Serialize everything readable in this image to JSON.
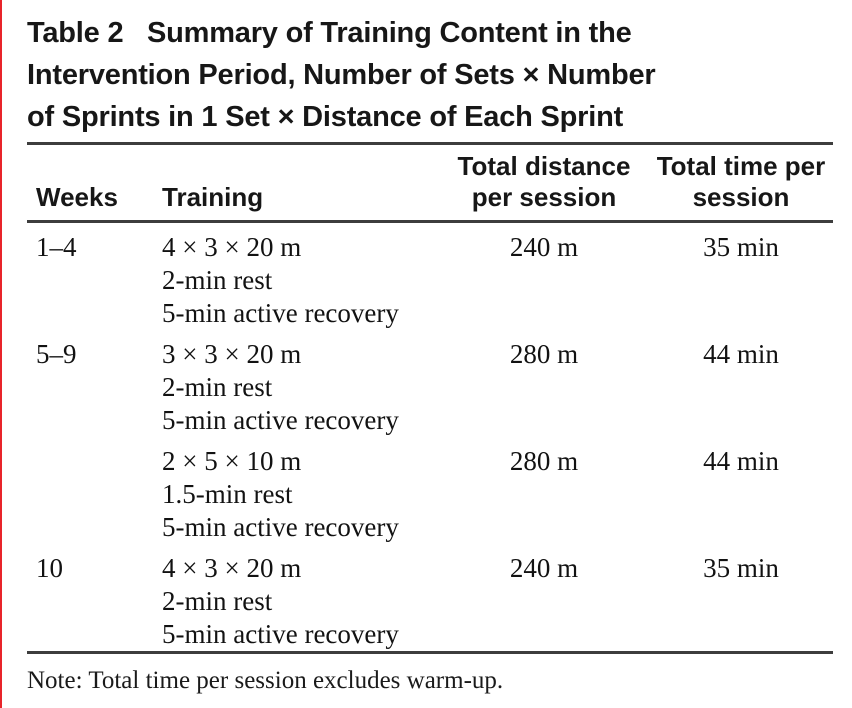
{
  "colors": {
    "background": "#ffffff",
    "text": "#141414",
    "rule": "#3d3d3d",
    "left_edge": "#e8242a"
  },
  "title": {
    "lines": [
      "Table 2   Summary of Training Content in the",
      "Intervention Period, Number of Sets × Number",
      "of Sprints in 1 Set × Distance of Each Sprint"
    ]
  },
  "table": {
    "columns": [
      {
        "key": "weeks",
        "label": "Weeks"
      },
      {
        "key": "training",
        "label": "Training"
      },
      {
        "key": "distance",
        "label": "Total distance per session"
      },
      {
        "key": "time",
        "label": "Total time per session"
      }
    ],
    "rows": [
      {
        "weeks": "1–4",
        "training": [
          "4 × 3 × 20 m",
          "2-min rest",
          "5-min active recovery"
        ],
        "distance": "240 m",
        "time": "35 min"
      },
      {
        "weeks": "5–9",
        "training": [
          "3 × 3 × 20 m",
          "2-min rest",
          "5-min active recovery"
        ],
        "distance": "280 m",
        "time": "44 min"
      },
      {
        "weeks": "",
        "training": [
          "2 × 5 × 10 m",
          "1.5-min rest",
          "5-min active recovery"
        ],
        "distance": "280 m",
        "time": "44 min"
      },
      {
        "weeks": "10",
        "training": [
          "4 × 3 × 20 m",
          "2-min rest",
          "5-min active recovery"
        ],
        "distance": "240 m",
        "time": "35 min"
      }
    ]
  },
  "note": "Note: Total time per session excludes warm-up."
}
